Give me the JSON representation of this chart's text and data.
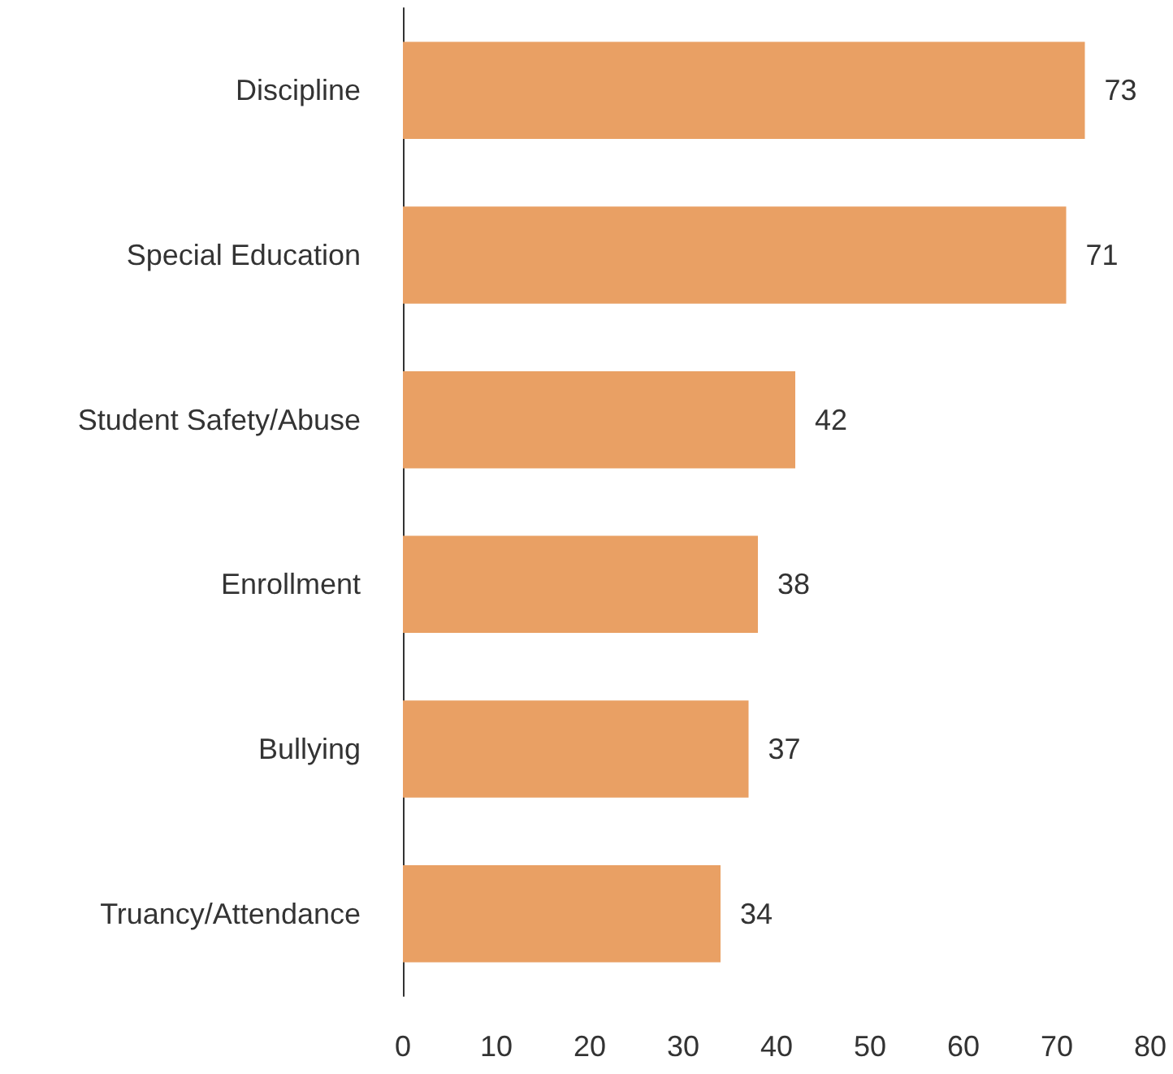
{
  "chart_data": {
    "type": "bar",
    "orientation": "horizontal",
    "categories": [
      "Discipline",
      "Special Education",
      "Student Safety/Abuse",
      "Enrollment",
      "Bullying",
      "Truancy/Attendance"
    ],
    "values": [
      73,
      71,
      42,
      38,
      37,
      34
    ],
    "color": "#e9a064",
    "data_labels": true,
    "xlim": [
      0,
      80
    ],
    "xticks": [
      0,
      10,
      20,
      30,
      40,
      50,
      60,
      70,
      80
    ],
    "grid": false
  }
}
